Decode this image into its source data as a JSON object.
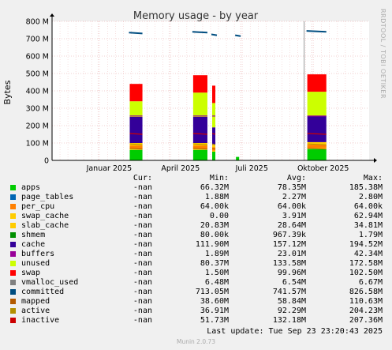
{
  "chart_data": {
    "type": "area",
    "title": "Memory usage - by year",
    "ylabel": "Bytes",
    "side_label": "RRDTOOL / TOBI OETIKER",
    "ylim": [
      0,
      800000000
    ],
    "y_ticks": [
      "0",
      "100 M",
      "200 M",
      "300 M",
      "400 M",
      "500 M",
      "600 M",
      "700 M",
      "800 M"
    ],
    "y_tick_values": [
      0,
      100000000,
      200000000,
      300000000,
      400000000,
      500000000,
      600000000,
      700000000,
      800000000
    ],
    "x_ticks": [
      "Januar 2025",
      "April 2025",
      "Juli 2025",
      "Oktober 2025"
    ],
    "bursts": [
      {
        "start": 0.245,
        "end": 0.285,
        "top": 530000000,
        "apps": 60000000,
        "cache": 150000000,
        "unused": 90000000,
        "swap": 100000000,
        "committed": 735000000
      },
      {
        "start": 0.445,
        "end": 0.49,
        "top": 530000000,
        "apps": 60000000,
        "cache": 150000000,
        "unused": 140000000,
        "swap": 100000000,
        "committed": 740000000
      },
      {
        "start": 0.505,
        "end": 0.515,
        "top": 530000000,
        "apps": 50000000,
        "cache": 100000000,
        "unused": 140000000,
        "swap": 100000000,
        "committed": 725000000
      },
      {
        "start": 0.58,
        "end": 0.59,
        "top": 530000000,
        "apps": 20000000,
        "cache": 0,
        "unused": 0,
        "swap": 0,
        "committed": 720000000
      },
      {
        "start": 0.805,
        "end": 0.865,
        "top": 530000000,
        "apps": 65000000,
        "cache": 150000000,
        "unused": 140000000,
        "swap": 100000000,
        "committed": 745000000
      }
    ],
    "legend_header": {
      "cur": "Cur:",
      "min": "Min:",
      "avg": "Avg:",
      "max": "Max:"
    },
    "series": [
      {
        "name": "apps",
        "color": "#00cc00",
        "cur": "-nan",
        "min": "66.32M",
        "avg": "78.35M",
        "max": "185.38M"
      },
      {
        "name": "page_tables",
        "color": "#0066b3",
        "cur": "-nan",
        "min": "1.88M",
        "avg": "2.27M",
        "max": "2.80M"
      },
      {
        "name": "per_cpu",
        "color": "#ff8000",
        "cur": "-nan",
        "min": "64.00k",
        "avg": "64.00k",
        "max": "64.00k"
      },
      {
        "name": "swap_cache",
        "color": "#ffcc00",
        "cur": "-nan",
        "min": "0.00",
        "avg": "3.91M",
        "max": "62.94M"
      },
      {
        "name": "slab_cache",
        "color": "#ffcc00",
        "cur": "-nan",
        "min": "20.83M",
        "avg": "28.64M",
        "max": "34.81M"
      },
      {
        "name": "shmem",
        "color": "#008f00",
        "cur": "-nan",
        "min": "80.00k",
        "avg": "967.39k",
        "max": "1.79M"
      },
      {
        "name": "cache",
        "color": "#330099",
        "cur": "-nan",
        "min": "111.90M",
        "avg": "157.12M",
        "max": "194.52M"
      },
      {
        "name": "buffers",
        "color": "#990099",
        "cur": "-nan",
        "min": "1.89M",
        "avg": "23.01M",
        "max": "42.34M"
      },
      {
        "name": "unused",
        "color": "#ccff00",
        "cur": "-nan",
        "min": "80.37M",
        "avg": "133.58M",
        "max": "172.58M"
      },
      {
        "name": "swap",
        "color": "#ff0000",
        "cur": "-nan",
        "min": "1.50M",
        "avg": "99.96M",
        "max": "102.50M"
      },
      {
        "name": "vmalloc_used",
        "color": "#808080",
        "cur": "-nan",
        "min": "6.48M",
        "avg": "6.54M",
        "max": "6.67M"
      },
      {
        "name": "committed",
        "color": "#004d80",
        "cur": "-nan",
        "min": "713.05M",
        "avg": "741.57M",
        "max": "826.58M"
      },
      {
        "name": "mapped",
        "color": "#b35a00",
        "cur": "-nan",
        "min": "38.60M",
        "avg": "58.84M",
        "max": "110.63M"
      },
      {
        "name": "active",
        "color": "#b38f00",
        "cur": "-nan",
        "min": "36.91M",
        "avg": "92.29M",
        "max": "204.23M"
      },
      {
        "name": "inactive",
        "color": "#cc0000",
        "cur": "-nan",
        "min": "51.73M",
        "avg": "132.18M",
        "max": "207.36M"
      }
    ]
  },
  "footer": {
    "last_update": "Last update: Tue Sep 23 23:20:43 2025",
    "version": "Munin 2.0.73"
  }
}
